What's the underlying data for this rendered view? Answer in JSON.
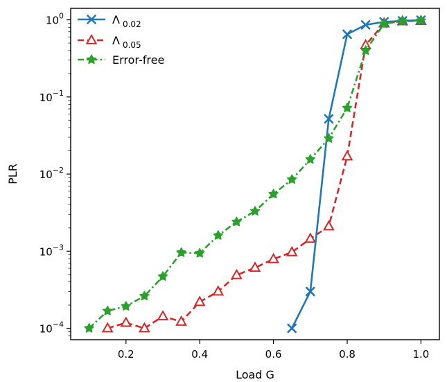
{
  "chart_data": {
    "type": "line",
    "xlabel": "Load G",
    "ylabel": "PLR",
    "xlim": [
      0.05,
      1.05
    ],
    "ylim": [
      7.11e-05,
      1.41
    ],
    "yscale": "log",
    "x_ticks": [
      0.2,
      0.4,
      0.6,
      0.8,
      1.0
    ],
    "x_tick_labels": [
      "0.2",
      "0.4",
      "0.6",
      "0.8",
      "1.0"
    ],
    "y_ticks": [
      {
        "value": 1,
        "base": "10",
        "exp": "0"
      },
      {
        "value": 0.1,
        "base": "10",
        "exp": "−1"
      },
      {
        "value": 0.01,
        "base": "10",
        "exp": "−2"
      },
      {
        "value": 0.001,
        "base": "10",
        "exp": "−3"
      },
      {
        "value": 0.0001,
        "base": "10",
        "exp": "−4"
      }
    ],
    "grid": false,
    "legend_position": "top-left",
    "series": [
      {
        "name": "Λ",
        "name_sub": "0.02",
        "color": "#1f77b4",
        "marker": "x",
        "linestyle": "solid",
        "x": [
          0.65,
          0.7,
          0.75,
          0.8,
          0.85,
          0.9,
          0.95,
          1.0
        ],
        "y": [
          0.0001,
          0.0003,
          0.052,
          0.65,
          0.86,
          0.94,
          0.97,
          0.99
        ]
      },
      {
        "name": "Λ",
        "name_sub": "0.05",
        "color": "#d62728",
        "marker": "triangle",
        "linestyle": "dashed",
        "x": [
          0.15,
          0.2,
          0.25,
          0.3,
          0.35,
          0.4,
          0.45,
          0.5,
          0.55,
          0.6,
          0.65,
          0.7,
          0.75,
          0.8,
          0.85,
          0.9,
          0.95,
          1.0
        ],
        "y": [
          0.0001,
          0.000118,
          0.0001,
          0.000143,
          0.000122,
          0.00022,
          0.0003,
          0.00049,
          0.00061,
          0.00079,
          0.00097,
          0.00145,
          0.0021,
          0.017,
          0.47,
          0.9,
          0.96,
          0.97
        ]
      },
      {
        "name": "Error-free",
        "color": "#2ca02c",
        "marker": "star",
        "linestyle": "dashdot",
        "x": [
          0.1,
          0.15,
          0.2,
          0.25,
          0.3,
          0.35,
          0.4,
          0.45,
          0.5,
          0.55,
          0.6,
          0.65,
          0.7,
          0.75,
          0.8,
          0.85,
          0.9,
          0.95,
          1.0
        ],
        "y": [
          0.0001,
          0.000168,
          0.000193,
          0.000262,
          0.00047,
          0.00096,
          0.00094,
          0.0016,
          0.0024,
          0.0033,
          0.0055,
          0.0085,
          0.0155,
          0.029,
          0.072,
          0.4,
          0.89,
          0.96,
          0.98
        ]
      }
    ]
  }
}
